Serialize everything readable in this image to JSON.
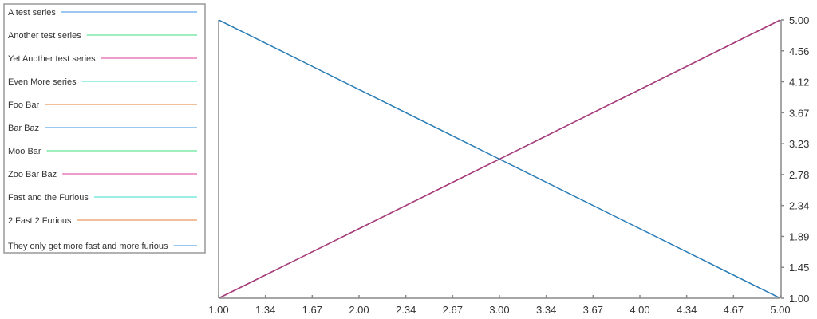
{
  "chart_data": {
    "type": "line",
    "x": [
      1,
      5
    ],
    "xlim": [
      1,
      5
    ],
    "ylim": [
      1,
      5
    ],
    "x_ticks": [
      "1.00",
      "1.34",
      "1.67",
      "2.00",
      "2.34",
      "2.67",
      "3.00",
      "3.34",
      "3.67",
      "4.00",
      "4.34",
      "4.67",
      "5.00"
    ],
    "y_ticks": [
      "1.00",
      "1.45",
      "1.89",
      "2.34",
      "2.78",
      "3.23",
      "3.67",
      "4.12",
      "4.56",
      "5.00"
    ],
    "y_axis_position": "right",
    "grid": false,
    "legend_placement": "left",
    "series": [
      {
        "name": "A test series",
        "color": "#7cb5ec",
        "values": [
          5,
          1
        ]
      },
      {
        "name": "Another test series",
        "color": "#7ee8a8",
        "values": [
          1,
          5
        ]
      },
      {
        "name": "Yet Another test series",
        "color": "#e87cb8",
        "values": [
          1,
          5
        ]
      },
      {
        "name": "Even More series",
        "color": "#7ce8e0",
        "values": [
          1,
          5
        ]
      },
      {
        "name": "Foo Bar",
        "color": "#ecaa7c",
        "values": [
          1,
          5
        ]
      },
      {
        "name": "Bar Baz",
        "color": "#7cb5ec",
        "values": [
          5,
          1
        ]
      },
      {
        "name": "Moo Bar",
        "color": "#7ee8a8",
        "values": [
          1,
          5
        ]
      },
      {
        "name": "Zoo Bar Baz",
        "color": "#e87cb8",
        "values": [
          1,
          5
        ]
      },
      {
        "name": "Fast and the Furious",
        "color": "#7ce8e0",
        "values": [
          1,
          5
        ]
      },
      {
        "name": "2 Fast 2 Furious",
        "color": "#ecaa7c",
        "values": [
          1,
          5
        ]
      },
      {
        "name": "They only get more fast and more furious",
        "color": "#7cb5ec",
        "values": [
          5,
          1
        ]
      }
    ],
    "plot_line_colors": {
      "descending": "#2e7fb8",
      "ascending": "#a8407e"
    }
  }
}
